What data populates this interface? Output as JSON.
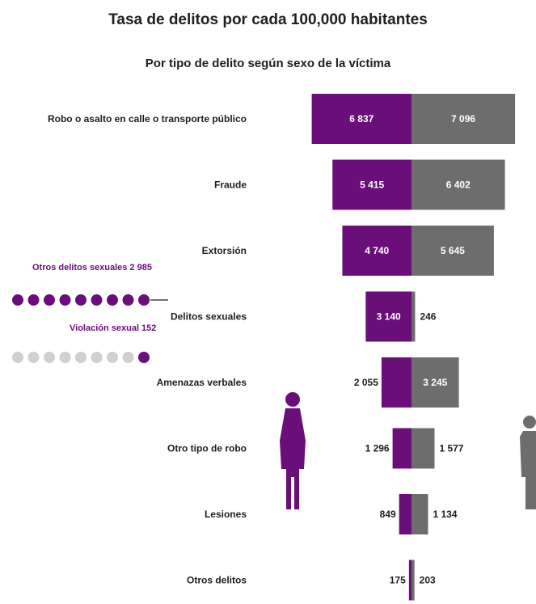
{
  "header": {
    "title": "Tasa de delitos por cada 100,000 habitantes",
    "subtitle": "Por tipo de delito según sexo de la víctima"
  },
  "colors": {
    "women": "#6a0e7a",
    "men": "#6d6d6d",
    "dots_light": "#d0d0d0"
  },
  "chart_data": {
    "type": "bar",
    "title": "Tasa de delitos por cada 100,000 habitantes",
    "subtitle": "Por tipo de delito según sexo de la víctima",
    "categories": [
      "Robo o asalto en calle o transporte público",
      "Fraude",
      "Extorsión",
      "Delitos sexuales",
      "Amenazas verbales",
      "Otro tipo de robo",
      "Lesiones",
      "Otros delitos"
    ],
    "series": [
      {
        "values": [
          6837,
          5415,
          4740,
          3140,
          2055,
          1296,
          849,
          175
        ]
      },
      {
        "values": [
          7096,
          6402,
          5645,
          246,
          3245,
          1577,
          1134,
          203
        ]
      }
    ],
    "value_labels_women": [
      "6 837",
      "5 415",
      "4 740",
      "3 140",
      "2 055",
      "1 296",
      "849",
      "175"
    ],
    "value_labels_men": [
      "7 096",
      "6 402",
      "5 645",
      "246",
      "3 245",
      "1 577",
      "1 134",
      "203"
    ],
    "bar_layout": "back-to-back horizontal"
  },
  "dot_panel": {
    "top_label": "Otros delitos sexuales 2 985",
    "bottom_label": "Violación sexual 152",
    "row1_filled": 9,
    "row2_filled": 1,
    "row_count": 9
  }
}
